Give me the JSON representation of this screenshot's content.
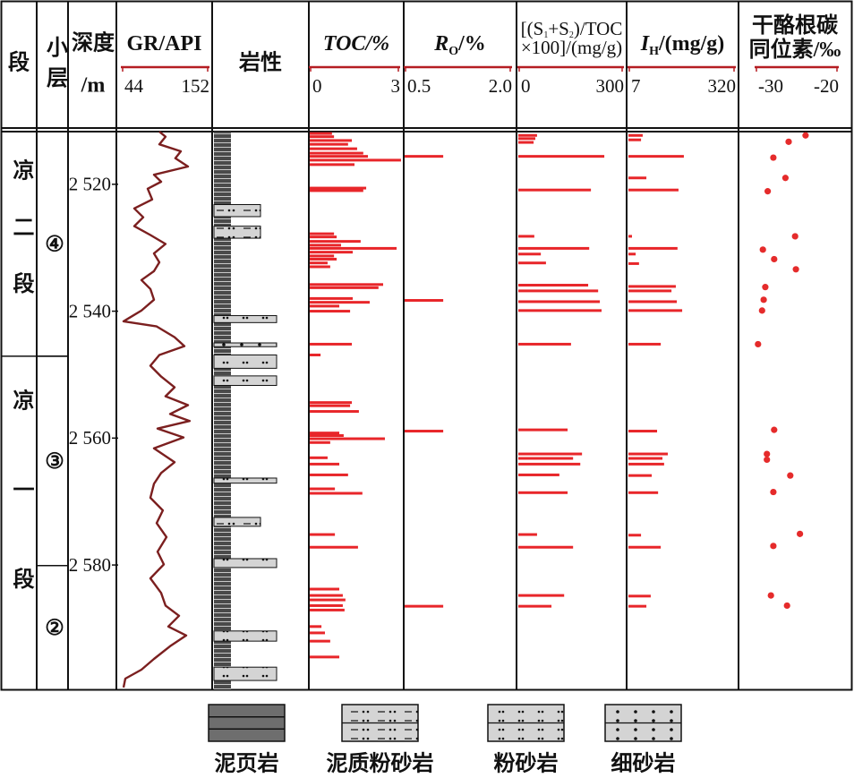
{
  "stages": {
    "header": "段",
    "units": [
      {
        "name": "凉二段",
        "top": 2511.7,
        "base": 2547.1
      },
      {
        "name": "凉一段",
        "top": 2547.1,
        "base": 2599.6
      }
    ]
  },
  "sublayers": {
    "header": "小层",
    "units": [
      {
        "name": "④",
        "top": 2511.7,
        "base": 2547.1
      },
      {
        "name": "③",
        "top": 2547.1,
        "base": 2580.1
      },
      {
        "name": "②",
        "top": 2580.1,
        "base": 2599.6
      }
    ]
  },
  "depth_axis": {
    "label": [
      "深度",
      "/m"
    ],
    "ylim": [
      2511.7,
      2599.6
    ],
    "yticks": [
      {
        "value": 2520,
        "label": "2 520"
      },
      {
        "value": 2540,
        "label": "2 540"
      },
      {
        "value": 2560,
        "label": "2 560"
      },
      {
        "value": 2580,
        "label": "2 580"
      }
    ]
  },
  "chart_data": [
    {
      "type": "line",
      "title": [
        [
          "GR/API"
        ]
      ],
      "xlim": [
        44,
        152
      ],
      "xticks": [
        44,
        152
      ],
      "color": "#7b1f1f",
      "depth": [
        2511.7,
        2512.5,
        2513.7,
        2514.8,
        2515.9,
        2517.2,
        2518.5,
        2519.6,
        2520.7,
        2522.4,
        2523.8,
        2525.2,
        2526.6,
        2528.0,
        2529.4,
        2530.9,
        2532.3,
        2533.7,
        2535.1,
        2536.5,
        2538.2,
        2539.9,
        2541.0,
        2541.6,
        2542.4,
        2544.1,
        2545.5,
        2546.9,
        2548.6,
        2550.3,
        2552.0,
        2553.4,
        2554.8,
        2556.2,
        2557.3,
        2558.5,
        2559.9,
        2561.6,
        2563.8,
        2565.5,
        2567.2,
        2569.4,
        2571.4,
        2573.4,
        2575.6,
        2577.9,
        2579.9,
        2582.1,
        2584.4,
        2586.4,
        2588.0,
        2589.7,
        2591.1,
        2592.8,
        2594.8,
        2596.5,
        2597.9,
        2599.3
      ],
      "values": [
        90.6,
        98.5,
        90.6,
        117.9,
        111.0,
        127.0,
        83.8,
        92.9,
        75.8,
        81.5,
        58.8,
        70.1,
        58.8,
        79.2,
        98.5,
        83.8,
        90.6,
        83.8,
        67.9,
        79.2,
        83.8,
        67.9,
        53.1,
        45.1,
        87.2,
        109.9,
        122.4,
        90.6,
        79.2,
        92.9,
        109.9,
        98.5,
        127.0,
        104.2,
        129.2,
        88.3,
        121.3,
        83.8,
        109.9,
        92.9,
        83.8,
        79.2,
        95.1,
        87.2,
        99.7,
        88.3,
        96.3,
        79.2,
        92.9,
        98.5,
        115.6,
        102.0,
        124.7,
        104.2,
        83.8,
        67.9,
        47.4,
        45.1
      ]
    },
    {
      "type": "lithology",
      "title": "岩性",
      "series": [
        {
          "name": "泥页岩",
          "intervals": [
            [
              2511.7,
              2599.6
            ]
          ]
        },
        {
          "name": "泥质粉砂岩",
          "intervals": [
            [
              2523.2,
              2525.1
            ],
            [
              2526.6,
              2528.5
            ],
            [
              2572.5,
              2573.9
            ]
          ]
        },
        {
          "name": "粉砂岩",
          "intervals": [
            [
              2540.7,
              2541.8
            ],
            [
              2546.9,
              2549.0
            ],
            [
              2550.2,
              2551.7
            ],
            [
              2566.3,
              2567.1
            ],
            [
              2579.0,
              2580.4
            ],
            [
              2590.4,
              2592.0
            ],
            [
              2596.1,
              2598.2
            ]
          ]
        },
        {
          "name": "细砂岩",
          "intervals": [
            [
              2545.0,
              2545.6
            ]
          ]
        }
      ]
    },
    {
      "type": "bar",
      "title": [
        [
          "TOC/%"
        ]
      ],
      "xlim": [
        0,
        3
      ],
      "xticks": [
        0,
        3
      ],
      "color": "#e8262a",
      "depth": [
        2512.0,
        2512.5,
        2513.1,
        2513.7,
        2514.4,
        2515.1,
        2515.6,
        2516.2,
        2516.9,
        2520.6,
        2521.0,
        2527.8,
        2528.3,
        2529.0,
        2529.6,
        2530.1,
        2530.7,
        2531.3,
        2531.8,
        2532.4,
        2533.0,
        2535.8,
        2536.3,
        2538.0,
        2538.6,
        2539.2,
        2540.0,
        2545.2,
        2546.9,
        2554.4,
        2554.9,
        2555.8,
        2559.2,
        2559.6,
        2560.1,
        2560.7,
        2563.1,
        2564.1,
        2565.8,
        2568.0,
        2568.7,
        2575.2,
        2577.2,
        2583.8,
        2584.8,
        2585.5,
        2586.4,
        2587.1,
        2589.7,
        2590.7,
        2592.0,
        2594.5
      ],
      "values": [
        0.73,
        0.8,
        1.41,
        1.28,
        1.59,
        1.8,
        1.96,
        3.09,
        1.5,
        1.9,
        1.8,
        0.8,
        0.89,
        1.71,
        1.04,
        2.94,
        1.44,
        0.8,
        0.89,
        0.58,
        0.67,
        2.48,
        2.32,
        1.44,
        2.02,
        0.98,
        1.35,
        1.41,
        0.34,
        1.41,
        1.35,
        1.65,
        0.98,
        1.13,
        2.54,
        0.67,
        0.58,
        0.98,
        1.28,
        0.83,
        1.77,
        0.83,
        1.62,
        0.98,
        1.1,
        1.19,
        1.1,
        1.16,
        0.37,
        0.49,
        0.67,
        0.98
      ]
    },
    {
      "type": "bar",
      "title": [
        [
          "R",
          "O",
          "/%"
        ]
      ],
      "xlim": [
        0.5,
        2
      ],
      "xticks": [
        0.5,
        {
          "value": 2,
          "label": "2.0"
        }
      ],
      "color": "#e8262a",
      "depth": [
        2515.6,
        2538.3,
        2558.9,
        2586.5
      ],
      "values": [
        1.04,
        1.04,
        1.04,
        1.04
      ]
    },
    {
      "type": "bar",
      "title": [
        [
          "[(S",
          "1",
          "+S",
          "2",
          ")/TOC"
        ],
        [
          "×100]/(mg/g)"
        ]
      ],
      "xlim": [
        0,
        300
      ],
      "xticks": [
        0,
        300
      ],
      "color": "#e8262a",
      "depth": [
        2512.3,
        2512.8,
        2513.4,
        2515.6,
        2520.9,
        2528.2,
        2530.1,
        2531.0,
        2532.4,
        2535.9,
        2536.8,
        2538.5,
        2539.9,
        2545.2,
        2558.7,
        2562.5,
        2563.2,
        2564.1,
        2565.8,
        2568.6,
        2575.2,
        2577.2,
        2584.8,
        2586.5
      ],
      "values": [
        52,
        47,
        42,
        248,
        209,
        44,
        204,
        63,
        78,
        201,
        230,
        235,
        240,
        151,
        141,
        183,
        157,
        178,
        117,
        141,
        52,
        157,
        131,
        94
      ]
    },
    {
      "type": "bar",
      "title": [
        [
          "I",
          "H",
          "/(mg/g)"
        ]
      ],
      "xlim": [
        7,
        320
      ],
      "xticks": [
        7,
        320
      ],
      "color": "#e8262a",
      "depth": [
        2512.3,
        2513.0,
        2515.6,
        2519.0,
        2520.9,
        2528.2,
        2530.1,
        2531.0,
        2532.5,
        2536.1,
        2536.8,
        2538.5,
        2539.9,
        2545.2,
        2558.9,
        2562.5,
        2563.2,
        2564.1,
        2565.9,
        2568.6,
        2575.3,
        2577.2,
        2584.9,
        2586.5
      ],
      "values": [
        47,
        42,
        170,
        58,
        154,
        15,
        151,
        26,
        36,
        146,
        133,
        149,
        165,
        101,
        90,
        122,
        106,
        111,
        74,
        93,
        42,
        101,
        71,
        58
      ]
    },
    {
      "type": "scatter",
      "title": [
        [
          "干酪根碳"
        ],
        [
          "同位素/‰"
        ]
      ],
      "xlim": [
        -30,
        -20
      ],
      "xticks": [
        -30,
        -20
      ],
      "color": "#e52b2b",
      "depth": [
        2512.3,
        2513.3,
        2515.8,
        2519.0,
        2521.1,
        2528.2,
        2530.3,
        2531.8,
        2533.4,
        2536.2,
        2538.2,
        2539.9,
        2545.2,
        2558.7,
        2562.5,
        2563.4,
        2565.9,
        2568.5,
        2575.1,
        2577.0,
        2584.8,
        2586.4
      ],
      "values": [
        -23.9,
        -26.0,
        -27.9,
        -26.4,
        -28.6,
        -25.2,
        -29.2,
        -27.8,
        -25.1,
        -28.9,
        -29.1,
        -29.3,
        -29.8,
        -27.8,
        -28.7,
        -28.7,
        -25.8,
        -27.9,
        -24.6,
        -27.9,
        -28.2,
        -26.2
      ]
    }
  ]
}
